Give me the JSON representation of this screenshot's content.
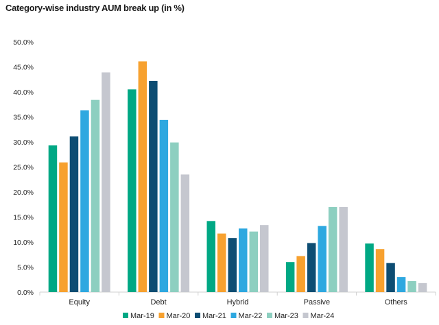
{
  "chart_data": {
    "type": "bar",
    "title": "Category-wise industry AUM break up (in %)",
    "categories": [
      "Equity",
      "Debt",
      "Hybrid",
      "Passive",
      "Others"
    ],
    "series": [
      {
        "name": "Mar-19",
        "color": "#00a884",
        "values": [
          29.3,
          40.5,
          14.2,
          6.0,
          9.7
        ]
      },
      {
        "name": "Mar-20",
        "color": "#f7a12f",
        "values": [
          25.9,
          46.1,
          11.7,
          7.2,
          8.6
        ]
      },
      {
        "name": "Mar-21",
        "color": "#0d4d73",
        "values": [
          31.1,
          42.2,
          10.8,
          9.8,
          5.8
        ]
      },
      {
        "name": "Mar-22",
        "color": "#2ea8e0",
        "values": [
          36.3,
          34.4,
          12.7,
          13.2,
          3.0
        ]
      },
      {
        "name": "Mar-23",
        "color": "#8dcfc0",
        "values": [
          38.4,
          29.9,
          12.1,
          17.0,
          2.2
        ]
      },
      {
        "name": "Mar-24",
        "color": "#c5c7cf",
        "values": [
          43.9,
          23.5,
          13.4,
          17.0,
          1.8
        ]
      }
    ],
    "ylim": [
      0,
      50
    ],
    "yticks": [
      "0.0%",
      "5.0%",
      "10.0%",
      "15.0%",
      "20.0%",
      "25.0%",
      "30.0%",
      "35.0%",
      "40.0%",
      "45.0%",
      "50.0%"
    ],
    "xlabel": "",
    "ylabel": "",
    "grid": false,
    "legend_position": "bottom"
  }
}
